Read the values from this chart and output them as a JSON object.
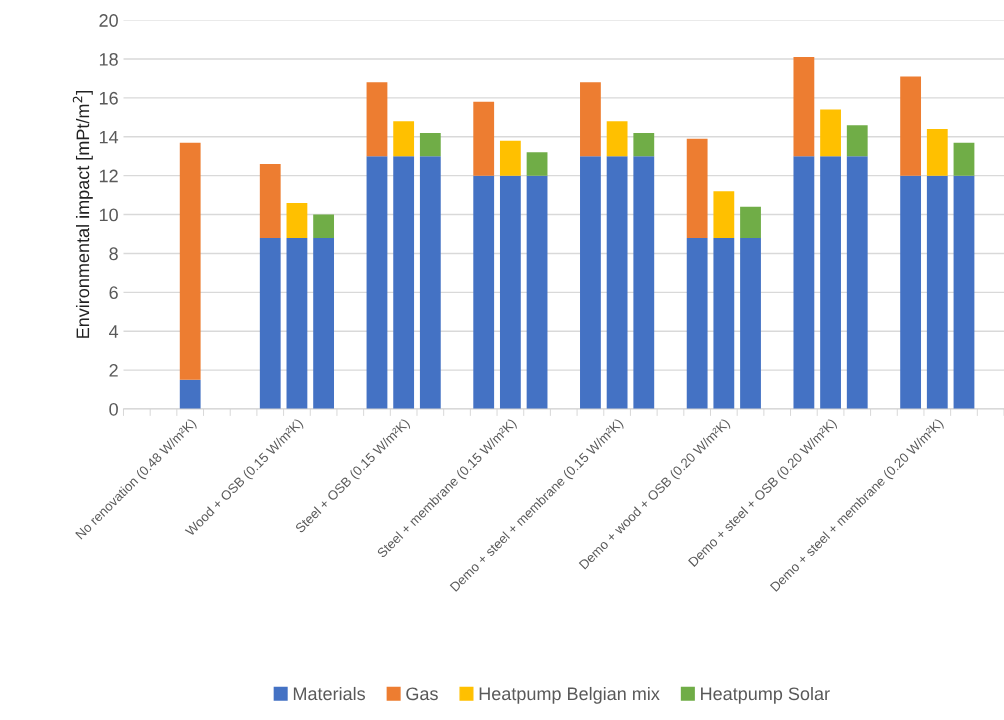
{
  "chart_data": {
    "type": "bar",
    "stacked": true,
    "ylabel": "Environmental impact [mPt/m$^{2}$]",
    "categories": [
      null,
      null,
      "No renovation (0.48 W/m²K)",
      null,
      null,
      null,
      "Wood + OSB (0.15 W/m²K)",
      null,
      null,
      null,
      "Steel + OSB (0.15 W/m²K)",
      null,
      null,
      null,
      "Steel + membrane (0.15 W/m²K)",
      null,
      null,
      null,
      "Demo + steel + membrane (0.15 W/m²K)",
      null,
      null,
      null,
      "Demo + wood + OSB (0.20 W/m²K)",
      null,
      null,
      null,
      "Demo + steel + OSB (0.20 W/m²K)",
      null,
      null,
      null,
      "Demo + steel + membrane (0.20 W/m²K)",
      null,
      null
    ],
    "series": [
      {
        "name": "Materials",
        "color": "#4472c4",
        "values": [
          null,
          null,
          1.5,
          null,
          null,
          8.8,
          8.8,
          8.8,
          null,
          13,
          13,
          13,
          null,
          12,
          12,
          12,
          null,
          13,
          13,
          13,
          null,
          8.8,
          8.8,
          8.8,
          null,
          13,
          13,
          13,
          null,
          12,
          12,
          12,
          null
        ]
      },
      {
        "name": "Gas",
        "color": "#ed7d31",
        "values": [
          null,
          null,
          12.2,
          null,
          null,
          3.8,
          null,
          null,
          null,
          3.8,
          null,
          null,
          null,
          3.8,
          null,
          null,
          null,
          3.8,
          null,
          null,
          null,
          5.1,
          null,
          null,
          null,
          5.1,
          null,
          null,
          null,
          5.1,
          null,
          null,
          null
        ]
      },
      {
        "name": "Heatpump Belgian mix",
        "color": "#ffc000",
        "values": [
          null,
          null,
          null,
          null,
          null,
          null,
          1.8,
          null,
          null,
          null,
          1.8,
          null,
          null,
          null,
          1.8,
          null,
          null,
          null,
          1.8,
          null,
          null,
          null,
          2.4,
          null,
          null,
          null,
          2.4,
          null,
          null,
          null,
          2.4,
          null,
          null
        ]
      },
      {
        "name": "Heatpump Solar",
        "color": "#70ad47",
        "values": [
          null,
          null,
          null,
          null,
          null,
          null,
          null,
          1.2,
          null,
          null,
          null,
          1.2,
          null,
          null,
          null,
          1.2,
          null,
          null,
          null,
          1.2,
          null,
          null,
          null,
          1.6,
          null,
          null,
          null,
          1.6,
          null,
          null,
          null,
          1.7,
          null
        ]
      }
    ],
    "ylim": [
      0,
      20
    ],
    "yticks": [
      0,
      2,
      4,
      6,
      8,
      10,
      12,
      14,
      16,
      18,
      20
    ],
    "grid": "y",
    "legend": "bottom"
  }
}
